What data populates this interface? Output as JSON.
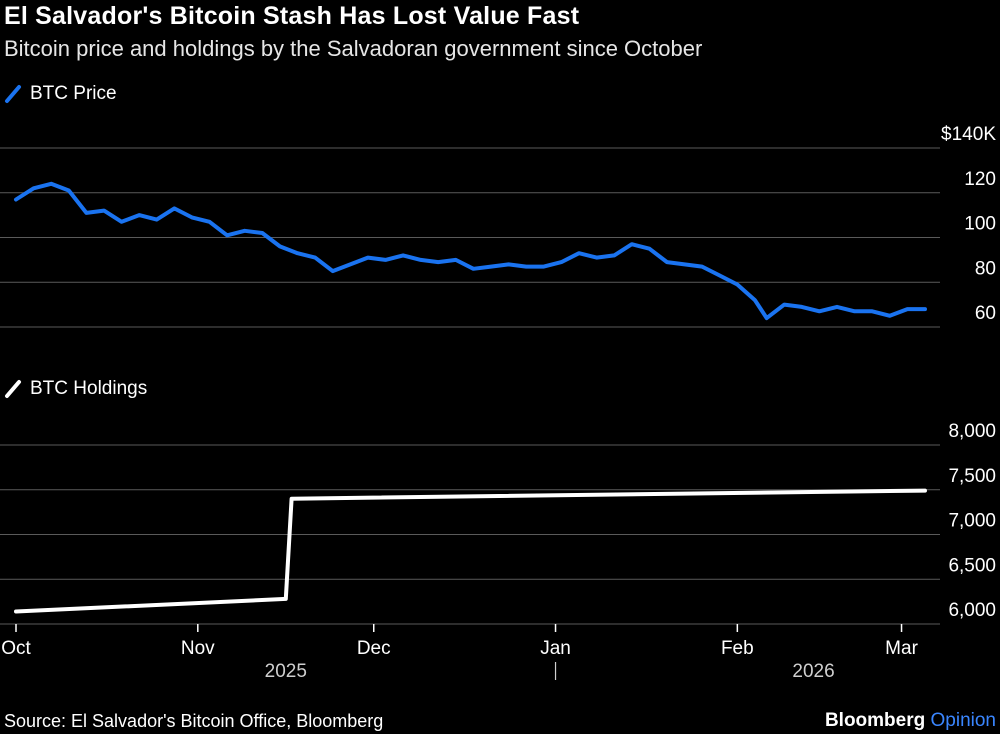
{
  "colors": {
    "price": "#1a73f0",
    "holdings": "#ffffff",
    "grid": "#5a5a5a",
    "brand_accent": "#3a86ff"
  },
  "title": "El Salvador's Bitcoin Stash Has Lost Value Fast",
  "subtitle": "Bitcoin price and holdings by the Salvadoran government since October",
  "source": "Source: El Salvador's Bitcoin Office, Bloomberg",
  "brand": {
    "name": "Bloomberg",
    "suffix": "Opinion"
  },
  "chart_data": [
    {
      "type": "line",
      "legend": "BTC Price",
      "y_unit": "USD (thousands)",
      "ylim": [
        60,
        140
      ],
      "y_ticks": [
        60,
        80,
        100,
        120,
        140
      ],
      "y_tick_labels": [
        "60",
        "80",
        "100",
        "120",
        "$140K"
      ],
      "x_range": [
        "2025-10-01",
        "2026-03-05"
      ],
      "x": [
        "2025-10-01",
        "2025-10-04",
        "2025-10-07",
        "2025-10-10",
        "2025-10-13",
        "2025-10-16",
        "2025-10-19",
        "2025-10-22",
        "2025-10-25",
        "2025-10-28",
        "2025-10-31",
        "2025-11-03",
        "2025-11-06",
        "2025-11-09",
        "2025-11-12",
        "2025-11-15",
        "2025-11-18",
        "2025-11-21",
        "2025-11-24",
        "2025-11-27",
        "2025-11-30",
        "2025-12-03",
        "2025-12-06",
        "2025-12-09",
        "2025-12-12",
        "2025-12-15",
        "2025-12-18",
        "2025-12-21",
        "2025-12-24",
        "2025-12-27",
        "2025-12-30",
        "2026-01-02",
        "2026-01-05",
        "2026-01-08",
        "2026-01-11",
        "2026-01-14",
        "2026-01-17",
        "2026-01-20",
        "2026-01-23",
        "2026-01-26",
        "2026-01-29",
        "2026-02-01",
        "2026-02-04",
        "2026-02-06",
        "2026-02-09",
        "2026-02-12",
        "2026-02-15",
        "2026-02-18",
        "2026-02-21",
        "2026-02-24",
        "2026-02-27",
        "2026-03-02",
        "2026-03-05"
      ],
      "values": [
        117,
        122,
        124,
        121,
        111,
        112,
        107,
        110,
        108,
        113,
        109,
        107,
        101,
        103,
        102,
        96,
        93,
        91,
        85,
        88,
        91,
        90,
        92,
        90,
        89,
        90,
        86,
        87,
        88,
        87,
        87,
        89,
        93,
        91,
        92,
        97,
        95,
        89,
        88,
        87,
        83,
        79,
        72,
        64,
        70,
        69,
        67,
        69,
        67,
        67,
        65,
        68,
        68
      ]
    },
    {
      "type": "line",
      "legend": "BTC Holdings",
      "y_unit": "BTC",
      "ylim": [
        6000,
        8000
      ],
      "y_ticks": [
        6000,
        6500,
        7000,
        7500,
        8000
      ],
      "y_tick_labels": [
        "6,000",
        "6,500",
        "7,000",
        "7,500",
        "8,000"
      ],
      "x_range": [
        "2025-10-01",
        "2026-03-05"
      ],
      "x": [
        "2025-10-01",
        "2025-11-16",
        "2025-11-17",
        "2026-03-05"
      ],
      "values": [
        6140,
        6280,
        7400,
        7490
      ]
    }
  ],
  "x_axis": {
    "ticks": [
      {
        "date": "2025-10-01",
        "label": "Oct"
      },
      {
        "date": "2025-11-01",
        "label": "Nov"
      },
      {
        "date": "2025-12-01",
        "label": "Dec"
      },
      {
        "date": "2026-01-01",
        "label": "Jan"
      },
      {
        "date": "2026-02-01",
        "label": "Feb"
      },
      {
        "date": "2026-03-01",
        "label": "Mar"
      }
    ],
    "years": [
      {
        "date": "2025-11-16",
        "label": "2025"
      },
      {
        "date": "2026-02-14",
        "label": "2026"
      }
    ],
    "year_divider": "2026-01-01"
  }
}
